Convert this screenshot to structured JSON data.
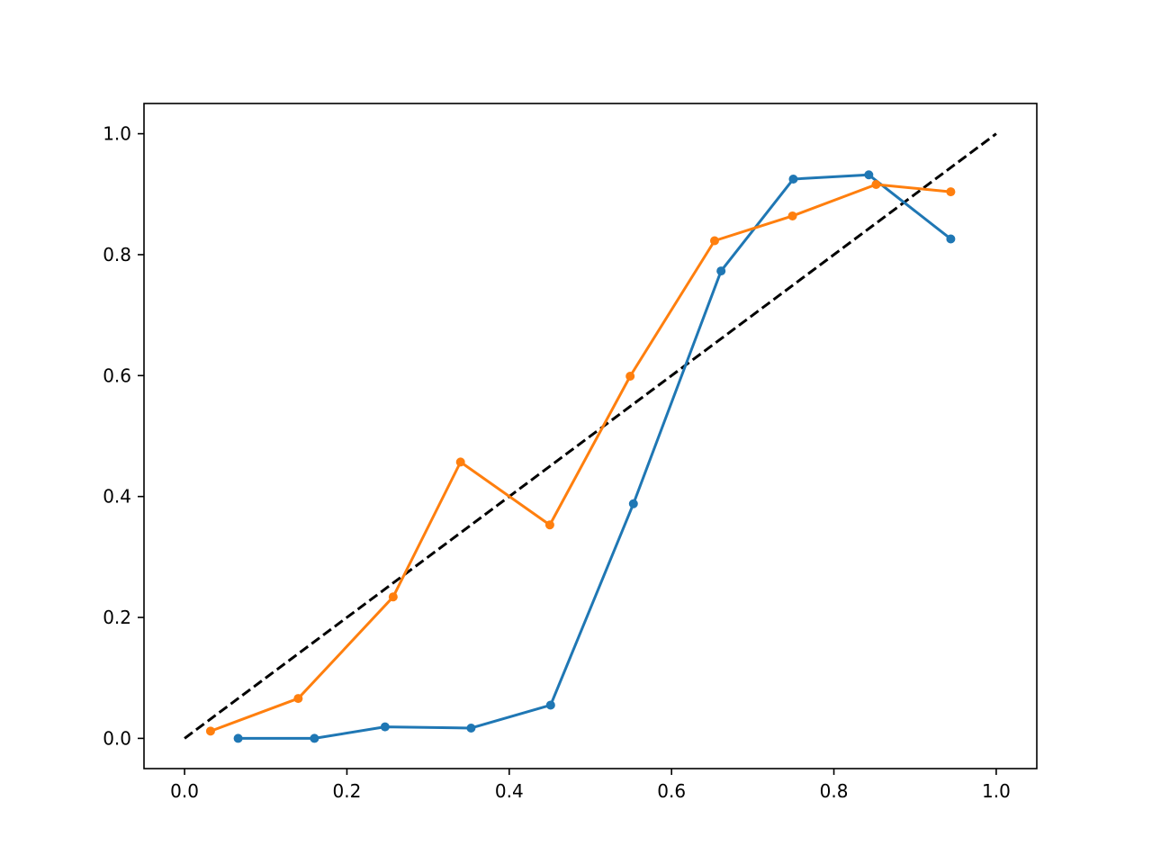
{
  "chart_data": {
    "type": "line",
    "title": "",
    "xlabel": "",
    "ylabel": "",
    "xlim": [
      -0.05,
      1.05
    ],
    "ylim": [
      -0.05,
      1.05
    ],
    "x_ticks": [
      "0.0",
      "0.2",
      "0.4",
      "0.6",
      "0.8",
      "1.0"
    ],
    "y_ticks": [
      "0.0",
      "0.2",
      "0.4",
      "0.6",
      "0.8",
      "1.0"
    ],
    "grid": false,
    "legend": "none",
    "reference_line": {
      "x": [
        0,
        1
      ],
      "y": [
        0,
        1
      ],
      "color": "#000000",
      "style": "dashed"
    },
    "series": [
      {
        "color": "#1f77b4",
        "x": [
          0.066,
          0.16,
          0.247,
          0.353,
          0.451,
          0.553,
          0.661,
          0.75,
          0.843,
          0.944
        ],
        "y": [
          0.0,
          0.0,
          0.019,
          0.017,
          0.055,
          0.388,
          0.773,
          0.925,
          0.932,
          0.826
        ]
      },
      {
        "color": "#ff7f0e",
        "x": [
          0.032,
          0.14,
          0.257,
          0.34,
          0.45,
          0.549,
          0.653,
          0.749,
          0.852,
          0.944
        ],
        "y": [
          0.012,
          0.066,
          0.234,
          0.457,
          0.353,
          0.599,
          0.823,
          0.864,
          0.916,
          0.904
        ]
      }
    ]
  }
}
